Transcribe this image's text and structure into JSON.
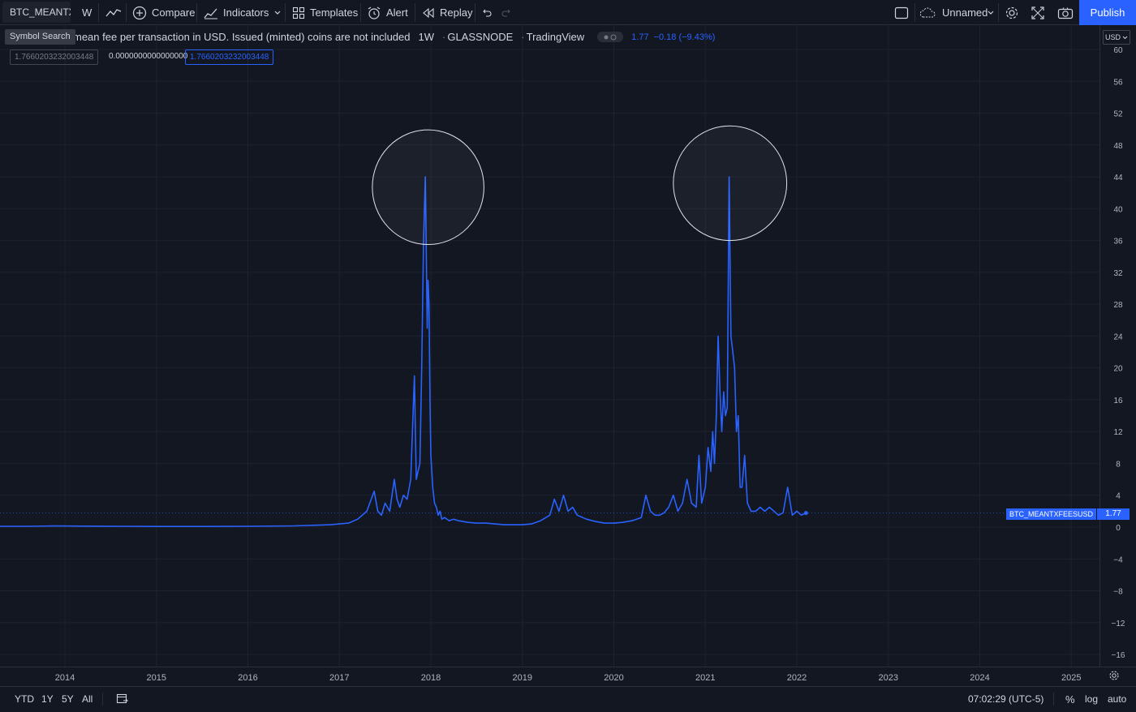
{
  "toolbar": {
    "symbol": "BTC_MEANTX",
    "interval": "W",
    "compare_label": "Compare",
    "indicators_label": "Indicators",
    "templates_label": "Templates",
    "alert_label": "Alert",
    "replay_label": "Replay",
    "layout_name": "Unnamed",
    "publish_label": "Publish"
  },
  "tooltip": {
    "text": "Symbol Search"
  },
  "legend": {
    "description": "mean fee per transaction in USD. Issued (minted) coins are not included",
    "interval": "1W",
    "source": "GLASSNODE",
    "platform": "TradingView",
    "last": "1.77",
    "change": "−0.18 (−9.43%)"
  },
  "value_boxes": [
    "1.7660203232003448",
    "0.0000000000000000",
    "1.7660203232003448"
  ],
  "price_axis": {
    "currency": "USD",
    "ticks": [
      "60",
      "56",
      "52",
      "48",
      "44",
      "40",
      "36",
      "32",
      "28",
      "24",
      "20",
      "16",
      "12",
      "8",
      "4",
      "0",
      "−4",
      "−8",
      "−12",
      "−16"
    ],
    "last_label": "1.77",
    "series_label": "BTC_MEANTXFEESUSD"
  },
  "time_axis": {
    "years": [
      "2014",
      "2015",
      "2016",
      "2017",
      "2018",
      "2019",
      "2020",
      "2021",
      "2022",
      "2023",
      "2024",
      "2025"
    ]
  },
  "bottom_bar": {
    "ranges": [
      "YTD",
      "1Y",
      "5Y",
      "All"
    ],
    "clock": "07:02:29 (UTC-5)",
    "percent": "%",
    "log": "log",
    "auto": "auto"
  },
  "colors": {
    "background": "#131722",
    "series": "#2962ff",
    "grid": "#1e2230",
    "accent": "#2962ff"
  },
  "chart_data": {
    "type": "line",
    "series": [
      {
        "name": "BTC_MEANTXFEESUSD",
        "x": [
          2013.6,
          2013.9,
          2014.2,
          2014.6,
          2015.0,
          2015.5,
          2016.0,
          2016.5,
          2016.9,
          2017.1,
          2017.2,
          2017.3,
          2017.38,
          2017.42,
          2017.46,
          2017.5,
          2017.55,
          2017.6,
          2017.63,
          2017.66,
          2017.7,
          2017.74,
          2017.78,
          2017.82,
          2017.84,
          2017.86,
          2017.88,
          2017.9,
          2017.92,
          2017.94,
          2017.96,
          2017.97,
          2017.98,
          2017.99,
          2018.0,
          2018.02,
          2018.04,
          2018.06,
          2018.08,
          2018.1,
          2018.12,
          2018.15,
          2018.2,
          2018.25,
          2018.3,
          2018.4,
          2018.5,
          2018.6,
          2018.7,
          2018.8,
          2018.9,
          2019.0,
          2019.1,
          2019.2,
          2019.3,
          2019.35,
          2019.4,
          2019.45,
          2019.5,
          2019.55,
          2019.6,
          2019.7,
          2019.8,
          2019.9,
          2020.0,
          2020.1,
          2020.2,
          2020.3,
          2020.35,
          2020.4,
          2020.45,
          2020.5,
          2020.55,
          2020.6,
          2020.65,
          2020.7,
          2020.75,
          2020.8,
          2020.85,
          2020.9,
          2020.93,
          2020.96,
          2021.0,
          2021.03,
          2021.06,
          2021.08,
          2021.1,
          2021.12,
          2021.14,
          2021.16,
          2021.18,
          2021.2,
          2021.22,
          2021.24,
          2021.26,
          2021.28,
          2021.3,
          2021.32,
          2021.34,
          2021.36,
          2021.38,
          2021.4,
          2021.43,
          2021.46,
          2021.5,
          2021.55,
          2021.6,
          2021.65,
          2021.7,
          2021.75,
          2021.8,
          2021.85,
          2021.9,
          2021.95,
          2022.0,
          2022.05,
          2022.1
        ],
        "y": [
          0.1,
          0.15,
          0.12,
          0.1,
          0.08,
          0.08,
          0.1,
          0.15,
          0.3,
          0.5,
          1.0,
          2.0,
          4.5,
          2.0,
          1.5,
          3.0,
          2.0,
          6.0,
          3.5,
          2.5,
          4.0,
          3.5,
          6.0,
          19.0,
          6.0,
          7.0,
          8.0,
          20.0,
          36.0,
          44.0,
          25.0,
          31.0,
          28.0,
          16.0,
          9.0,
          5.0,
          3.0,
          2.5,
          1.5,
          2.0,
          1.0,
          1.2,
          0.8,
          1.0,
          0.8,
          0.6,
          0.5,
          0.5,
          0.4,
          0.3,
          0.3,
          0.3,
          0.4,
          0.8,
          1.5,
          3.5,
          2.0,
          4.0,
          2.0,
          2.5,
          1.5,
          1.0,
          0.7,
          0.5,
          0.5,
          0.6,
          0.8,
          1.2,
          4.0,
          2.0,
          1.5,
          1.5,
          1.8,
          2.5,
          4.0,
          2.0,
          3.0,
          6.0,
          3.0,
          2.5,
          9.0,
          3.0,
          5.0,
          10.0,
          7.0,
          12.0,
          8.0,
          14.0,
          24.0,
          17.0,
          12.0,
          17.0,
          14.0,
          15.0,
          44.0,
          24.0,
          22.0,
          20.0,
          12.0,
          14.0,
          5.0,
          5.0,
          9.0,
          3.0,
          2.0,
          2.0,
          2.5,
          2.0,
          2.5,
          2.0,
          1.5,
          1.8,
          5.0,
          1.5,
          2.0,
          1.5,
          1.77
        ]
      }
    ],
    "ylim": [
      -18,
      61
    ],
    "xlim": [
      2013.4,
      2025.3
    ],
    "grid": true,
    "annotations": [
      {
        "type": "ellipse",
        "x_center": 2017.97,
        "y_center": 42.7,
        "x_radius": 0.61,
        "y_radius": 7.2
      },
      {
        "type": "ellipse",
        "x_center": 2021.27,
        "y_center": 43.2,
        "x_radius": 0.62,
        "y_radius": 7.2
      }
    ]
  }
}
